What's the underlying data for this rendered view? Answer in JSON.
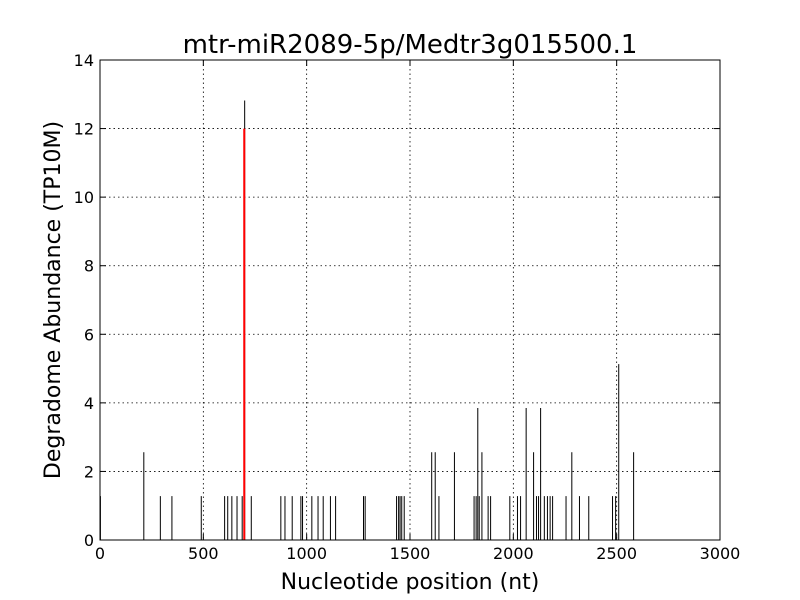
{
  "chart_data": {
    "type": "bar",
    "title": "mtr-miR2089-5p/Medtr3g015500.1",
    "xlabel": "Nucleotide position (nt)",
    "ylabel": "Degradome Abundance (TP10M)",
    "xlim": [
      0,
      3000
    ],
    "ylim": [
      0,
      14
    ],
    "xticks": [
      0,
      500,
      1000,
      1500,
      2000,
      2500,
      3000
    ],
    "yticks": [
      0,
      2,
      4,
      6,
      8,
      10,
      12,
      14
    ],
    "grid": true,
    "colors": {
      "series": "#000000",
      "highlight": "#ff0000"
    },
    "series": [
      {
        "points": [
          [
            2,
            1.28
          ],
          [
            212,
            2.56
          ],
          [
            292,
            1.28
          ],
          [
            348,
            1.28
          ],
          [
            490,
            1.28
          ],
          [
            603,
            1.28
          ],
          [
            618,
            1.28
          ],
          [
            638,
            1.28
          ],
          [
            663,
            1.28
          ],
          [
            688,
            1.28
          ],
          [
            700,
            12.82
          ],
          [
            732,
            1.28
          ],
          [
            875,
            1.28
          ],
          [
            895,
            1.28
          ],
          [
            930,
            1.28
          ],
          [
            972,
            1.28
          ],
          [
            980,
            1.28
          ],
          [
            1025,
            1.28
          ],
          [
            1055,
            1.28
          ],
          [
            1080,
            1.28
          ],
          [
            1115,
            1.28
          ],
          [
            1140,
            1.28
          ],
          [
            1275,
            1.28
          ],
          [
            1283,
            1.28
          ],
          [
            1435,
            1.28
          ],
          [
            1445,
            1.28
          ],
          [
            1452,
            1.28
          ],
          [
            1460,
            1.28
          ],
          [
            1472,
            1.28
          ],
          [
            1605,
            2.56
          ],
          [
            1622,
            2.56
          ],
          [
            1640,
            1.28
          ],
          [
            1715,
            2.56
          ],
          [
            1810,
            1.28
          ],
          [
            1820,
            1.28
          ],
          [
            1828,
            3.85
          ],
          [
            1835,
            1.28
          ],
          [
            1848,
            2.56
          ],
          [
            1878,
            1.28
          ],
          [
            1890,
            1.28
          ],
          [
            1983,
            1.28
          ],
          [
            2020,
            1.28
          ],
          [
            2035,
            1.28
          ],
          [
            2062,
            3.85
          ],
          [
            2098,
            2.56
          ],
          [
            2112,
            1.28
          ],
          [
            2122,
            1.28
          ],
          [
            2132,
            3.85
          ],
          [
            2150,
            1.28
          ],
          [
            2165,
            1.28
          ],
          [
            2178,
            1.28
          ],
          [
            2190,
            1.28
          ],
          [
            2255,
            1.28
          ],
          [
            2283,
            2.56
          ],
          [
            2320,
            1.28
          ],
          [
            2365,
            1.28
          ],
          [
            2480,
            1.28
          ],
          [
            2495,
            1.28
          ],
          [
            2510,
            5.13
          ],
          [
            2582,
            2.56
          ]
        ]
      }
    ],
    "highlight": {
      "x": [
        698,
        698
      ],
      "y": [
        0,
        12
      ]
    }
  }
}
